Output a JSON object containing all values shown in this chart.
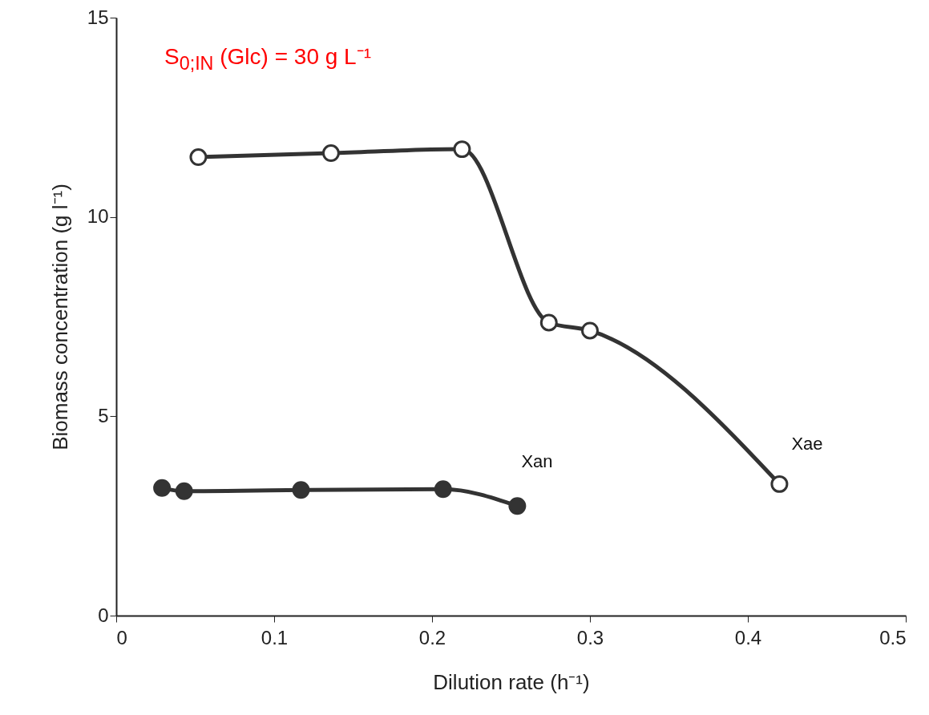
{
  "chart_data": {
    "type": "line",
    "xlabel": "Dilution rate (h⁻¹)",
    "ylabel": "Biomass concentration (g l⁻¹)",
    "annotations": [
      "S$_{0;IN}$ (Glc) = 30 g L⁻¹"
    ],
    "xlim": [
      0,
      0.5
    ],
    "xticks": [
      0,
      0.1,
      0.2,
      0.3,
      0.4,
      0.5
    ],
    "ylim": [
      0,
      15
    ],
    "yticks": [
      0,
      5,
      10,
      15
    ],
    "grid": false,
    "legend": false,
    "marker": "circle",
    "line_style": "solid",
    "series": [
      {
        "name": "Xae",
        "color": "#333333",
        "x": [
          0.052,
          0.136,
          0.219,
          0.274,
          0.3,
          0.42
        ],
        "values": [
          11.5,
          11.6,
          11.7,
          7.35,
          7.15,
          3.3
        ]
      },
      {
        "name": "Xan",
        "color": "#333333",
        "x": [
          0.029,
          0.043,
          0.117,
          0.207,
          0.254
        ],
        "values": [
          3.2,
          3.12,
          3.15,
          3.17,
          2.75
        ]
      }
    ]
  }
}
